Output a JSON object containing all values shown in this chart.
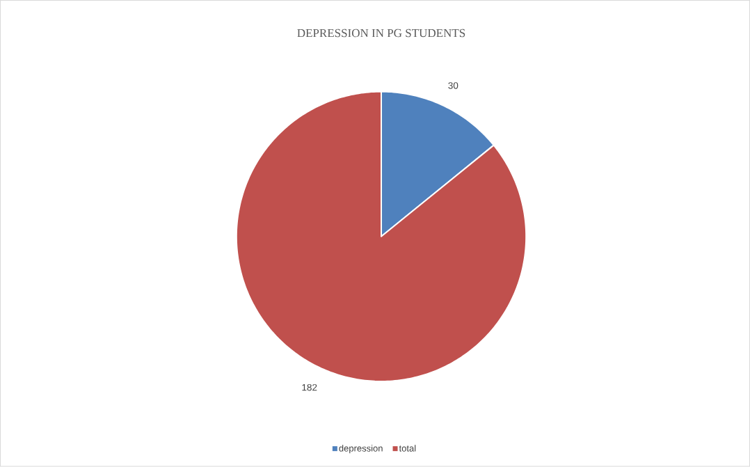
{
  "chart_data": {
    "type": "pie",
    "title": "DEPRESSION IN  PG STUDENTS",
    "categories": [
      "depression",
      "total"
    ],
    "values": [
      30,
      182
    ],
    "value_labels": [
      "30",
      "182"
    ],
    "colors": [
      "#4f81bd",
      "#c0504d"
    ],
    "legend": "bottom"
  }
}
